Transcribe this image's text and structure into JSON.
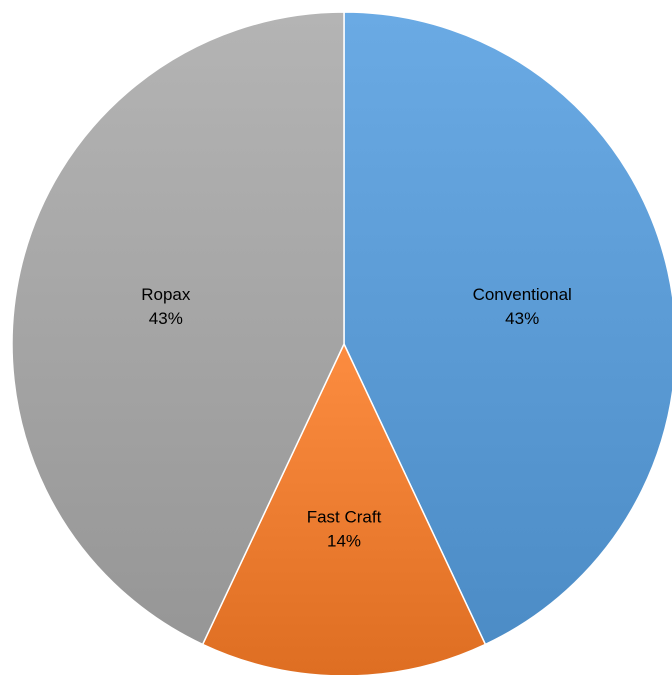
{
  "chart_data": {
    "type": "pie",
    "title": "",
    "start_angle_deg": 0,
    "direction": "clockwise",
    "slices": [
      {
        "name": "Conventional",
        "value": 43,
        "percent_label": "43%",
        "color": "#5b9bd5"
      },
      {
        "name": "Fast Craft",
        "value": 14,
        "percent_label": "14%",
        "color": "#ed7d31"
      },
      {
        "name": "Ropax",
        "value": 43,
        "percent_label": "43%",
        "color": "#a5a5a5"
      }
    ],
    "legend": "none",
    "data_labels": "inside"
  }
}
